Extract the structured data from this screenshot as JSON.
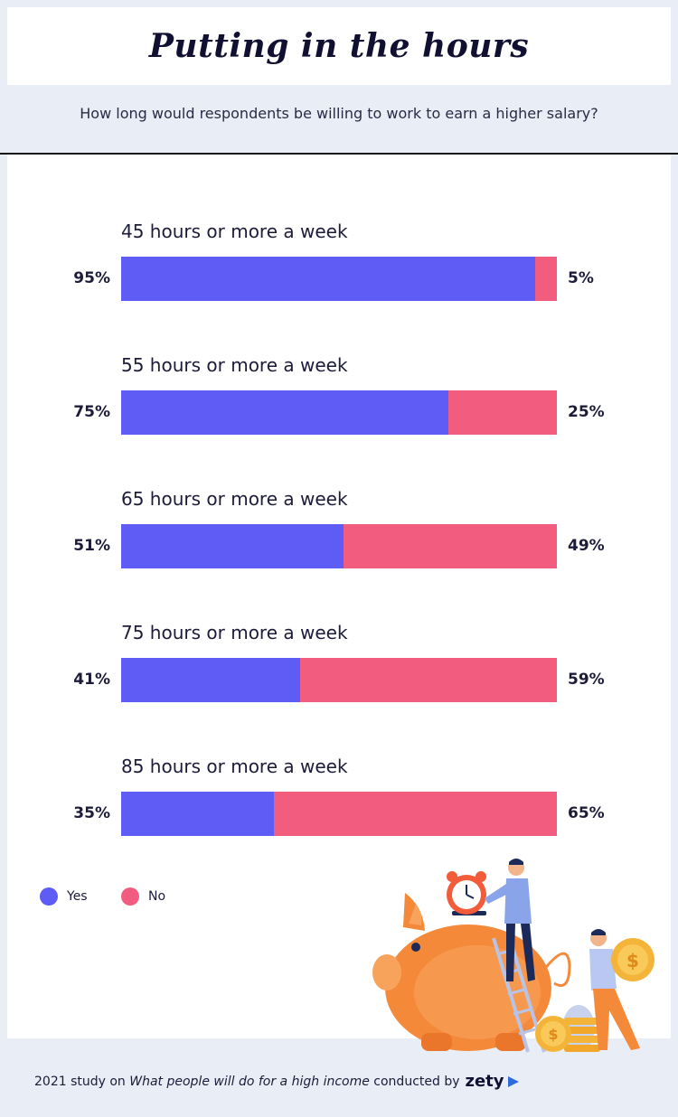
{
  "header": {
    "title": "Putting in the hours",
    "subtitle": "How long would respondents be willing to work  to earn a higher salary?"
  },
  "colors": {
    "yes": "#5f5cf6",
    "no": "#f25c7e"
  },
  "legend": {
    "yes_label": "Yes",
    "no_label": "No"
  },
  "chart_data": {
    "type": "bar",
    "orientation": "horizontal-stacked-100",
    "categories": [
      "45 hours or more a week",
      "55 hours or more a week",
      "65 hours or more a week",
      "75 hours or more a week",
      "85 hours or more a week"
    ],
    "series": [
      {
        "name": "Yes",
        "values": [
          95,
          75,
          51,
          41,
          35
        ]
      },
      {
        "name": "No",
        "values": [
          5,
          25,
          49,
          59,
          65
        ]
      }
    ],
    "value_labels": {
      "yes": [
        "95%",
        "75%",
        "51%",
        "41%",
        "35%"
      ],
      "no": [
        "5%",
        "25%",
        "49%",
        "59%",
        "65%"
      ]
    },
    "legend_position": "bottom-left"
  },
  "footer": {
    "prefix": "2021 study on ",
    "study_title": "What people will do for a high income",
    "suffix": " conducted by",
    "brand": "zety"
  }
}
